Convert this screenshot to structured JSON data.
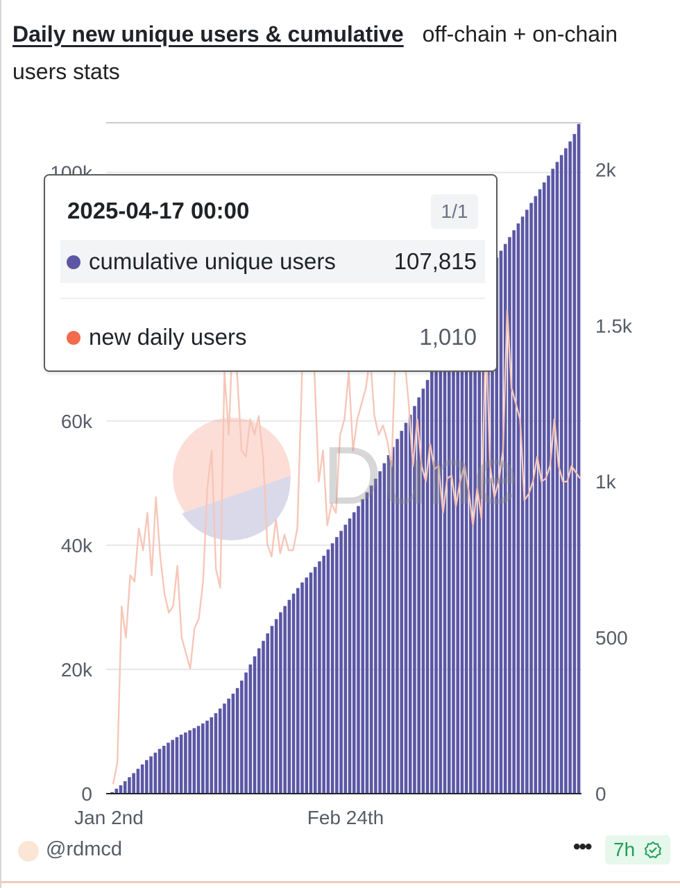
{
  "header": {
    "title": "Daily new unique users & cumulative",
    "subtitle": "off-chain + on-chain users stats"
  },
  "watermark": "Dune",
  "tooltip": {
    "date": "2025-04-17 00:00",
    "page": "1/1",
    "rows": [
      {
        "label": "cumulative unique users",
        "value": "107,815",
        "color": "#5b57a5",
        "highlighted": true
      },
      {
        "label": "new daily users",
        "value": "1,010",
        "color": "#f26b4c",
        "highlighted": false
      }
    ]
  },
  "footer": {
    "author": "@rdmcd",
    "more": "•••",
    "age": "7h"
  },
  "chart_data": {
    "type": "bar",
    "x_start": "2025-01-02",
    "x_end": "2025-04-17",
    "x_ticks": [
      "Jan 2nd",
      "Feb 24th"
    ],
    "y_left": {
      "ticks": [
        "0",
        "20k",
        "40k",
        "60k",
        "100k"
      ],
      "range": [
        0,
        108000
      ]
    },
    "y_right": {
      "ticks": [
        "0",
        "500",
        "1k",
        "1.5k",
        "2k"
      ],
      "range": [
        0,
        2150
      ]
    },
    "grid": true,
    "series": [
      {
        "name": "cumulative unique users",
        "type": "bar",
        "axis": "left",
        "color": "#5b57a5",
        "values": [
          0,
          250,
          800,
          1350,
          2000,
          2650,
          3300,
          4000,
          4700,
          5400,
          6000,
          6600,
          7200,
          7700,
          8200,
          8650,
          9100,
          9500,
          9850,
          10200,
          10550,
          10900,
          11300,
          11750,
          12300,
          12950,
          13700,
          14500,
          15300,
          16100,
          17000,
          18200,
          19500,
          20800,
          22100,
          23400,
          24600,
          25800,
          27000,
          28100,
          29200,
          30200,
          31200,
          32200,
          33100,
          34000,
          34800,
          35600,
          36500,
          37400,
          38300,
          39300,
          40300,
          41300,
          42300,
          43300,
          44300,
          45300,
          46300,
          47400,
          48500,
          49600,
          50700,
          51900,
          53200,
          54500,
          55800,
          57100,
          58400,
          59700,
          61000,
          62400,
          63800,
          65200,
          66600,
          68000,
          69400,
          70800,
          72100,
          73400,
          74700,
          76000,
          77300,
          78500,
          79700,
          80800,
          81900,
          83000,
          84100,
          85200,
          86300,
          87400,
          88500,
          89600,
          90700,
          91800,
          92900,
          94000,
          95100,
          96200,
          97300,
          98400,
          99500,
          100600,
          101700,
          102800,
          103900,
          105000,
          106200,
          107815
        ]
      },
      {
        "name": "new daily users",
        "type": "line",
        "axis": "right",
        "color": "#f7c6b8",
        "values": [
          30,
          100,
          600,
          500,
          700,
          680,
          850,
          780,
          900,
          700,
          950,
          760,
          640,
          580,
          600,
          730,
          500,
          450,
          400,
          530,
          560,
          680,
          980,
          1100,
          720,
          660,
          1350,
          1150,
          1500,
          1330,
          1100,
          1080,
          1200,
          1150,
          1210,
          1080,
          800,
          760,
          880,
          770,
          830,
          780,
          780,
          850,
          1300,
          1850,
          1400,
          1350,
          1000,
          1100,
          860,
          930,
          900,
          1150,
          1200,
          1350,
          1100,
          1200,
          1250,
          1300,
          1400,
          1210,
          1150,
          1180,
          1130,
          1050,
          1450,
          1700,
          1400,
          1250,
          1050,
          1200,
          1050,
          1000,
          1120,
          1040,
          1050,
          900,
          1010,
          1020,
          920,
          1000,
          1050,
          970,
          860,
          980,
          880,
          1500,
          1050,
          950,
          1000,
          1100,
          1550,
          1300,
          1250,
          1200,
          940,
          960,
          1000,
          1080,
          1000,
          1010,
          1050,
          1200,
          1050,
          1000,
          1000,
          1050,
          1030,
          1010
        ]
      }
    ]
  }
}
